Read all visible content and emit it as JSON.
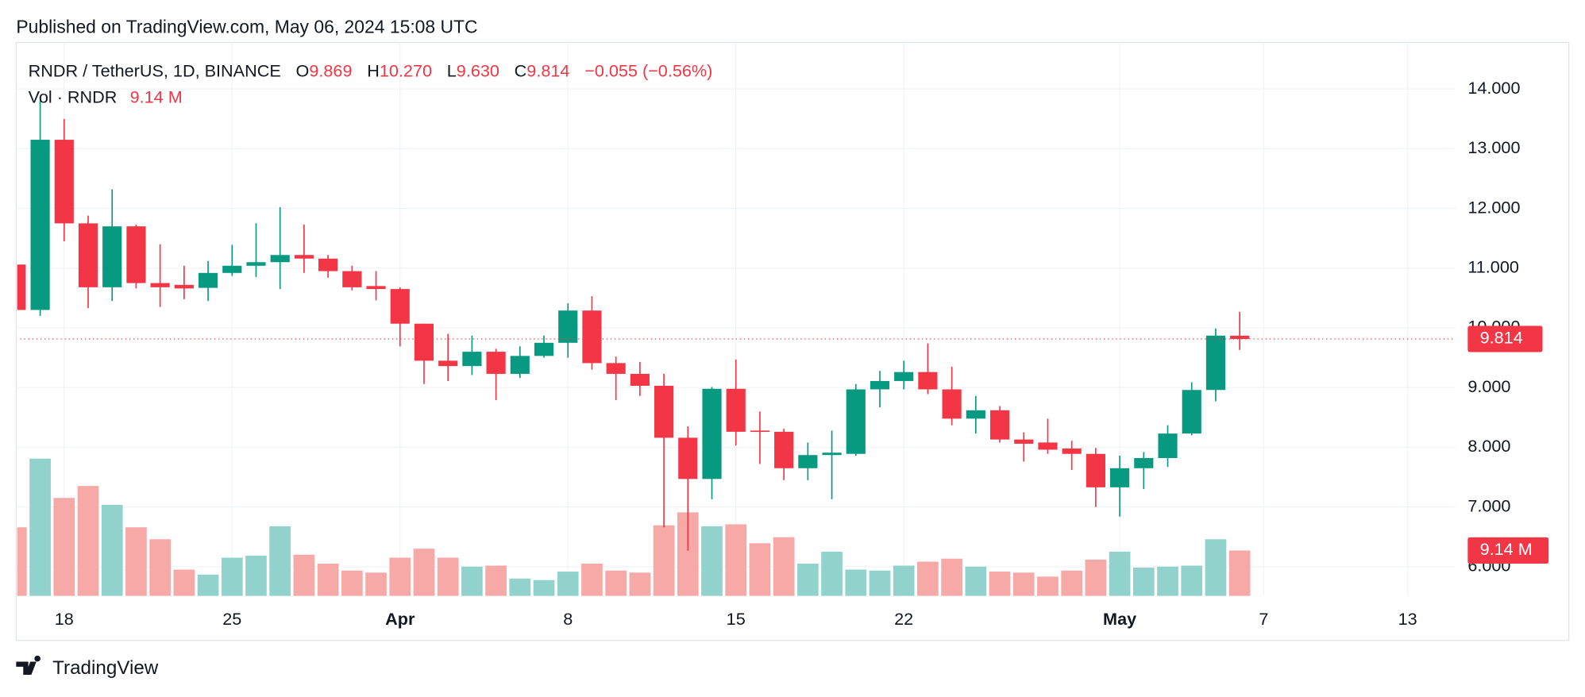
{
  "header": {
    "published": "Published on TradingView.com, May 06, 2024 15:08 UTC"
  },
  "footer": {
    "brand": "TradingView"
  },
  "chart_data": {
    "type": "candlestick",
    "symbol": "RNDR / TetherUS, 1D, BINANCE",
    "ohlc_letters": [
      "O",
      "H",
      "L",
      "C"
    ],
    "ohlc_header": [
      "9.869",
      "10.270",
      "9.630",
      "9.814"
    ],
    "change": "−0.055 (−0.56%)",
    "volume_title": "Vol · RNDR",
    "volume_label": "9.14 M",
    "up_color": "#089981",
    "down_color": "#f23645",
    "up_volume_color": "#92d2cc",
    "down_volume_color": "#f7a9a7",
    "grid": true,
    "x": [
      "Mar 16",
      "Mar 17",
      "Mar 18",
      "Mar 19",
      "Mar 20",
      "Mar 21",
      "Mar 22",
      "Mar 23",
      "Mar 24",
      "Mar 25",
      "Mar 26",
      "Mar 27",
      "Mar 28",
      "Mar 29",
      "Mar 30",
      "Mar 31",
      "Apr 1",
      "Apr 2",
      "Apr 3",
      "Apr 4",
      "Apr 5",
      "Apr 6",
      "Apr 7",
      "Apr 8",
      "Apr 9",
      "Apr 10",
      "Apr 11",
      "Apr 12",
      "Apr 13",
      "Apr 14",
      "Apr 15",
      "Apr 16",
      "Apr 17",
      "Apr 18",
      "Apr 19",
      "Apr 20",
      "Apr 21",
      "Apr 22",
      "Apr 23",
      "Apr 24",
      "Apr 25",
      "Apr 26",
      "Apr 27",
      "Apr 28",
      "Apr 29",
      "Apr 30",
      "May 1",
      "May 2",
      "May 3",
      "May 4",
      "May 5",
      "May 6"
    ],
    "open": [
      11.06,
      10.3,
      13.15,
      11.75,
      10.68,
      11.7,
      10.75,
      10.72,
      10.67,
      10.92,
      11.04,
      11.1,
      11.22,
      11.16,
      10.95,
      10.7,
      10.65,
      10.07,
      9.45,
      9.36,
      9.6,
      9.23,
      9.53,
      9.75,
      10.29,
      9.41,
      9.23,
      9.03,
      8.16,
      7.47,
      8.98,
      8.28,
      8.26,
      7.65,
      7.87,
      7.89,
      8.97,
      9.11,
      9.26,
      8.97,
      8.48,
      8.62,
      8.13,
      8.08,
      7.98,
      7.89,
      7.33,
      7.65,
      7.82,
      8.23,
      8.96,
      9.869
    ],
    "high": [
      11.2,
      13.8,
      13.5,
      11.88,
      12.32,
      11.73,
      11.4,
      11.04,
      11.12,
      11.39,
      11.75,
      12.02,
      11.73,
      11.22,
      11.04,
      10.95,
      10.68,
      10.07,
      9.9,
      9.87,
      9.65,
      9.69,
      9.87,
      10.41,
      10.53,
      9.52,
      9.43,
      9.23,
      8.35,
      9.01,
      9.47,
      8.6,
      8.31,
      8.08,
      8.28,
      9.06,
      9.28,
      9.45,
      9.74,
      9.35,
      8.86,
      8.69,
      8.25,
      8.48,
      8.11,
      7.99,
      7.86,
      7.92,
      8.37,
      9.09,
      9.99,
      10.27
    ],
    "low": [
      10.2,
      10.2,
      11.45,
      10.33,
      10.45,
      10.66,
      10.35,
      10.48,
      10.45,
      10.87,
      10.85,
      10.65,
      10.92,
      10.84,
      10.63,
      10.46,
      9.69,
      9.06,
      9.11,
      9.21,
      8.79,
      9.16,
      9.5,
      9.5,
      9.3,
      8.79,
      8.86,
      6.66,
      6.27,
      7.13,
      8.03,
      7.72,
      7.45,
      7.45,
      7.13,
      7.86,
      8.67,
      8.97,
      8.89,
      8.37,
      8.23,
      8.08,
      7.76,
      7.89,
      7.62,
      7.0,
      6.84,
      7.3,
      7.67,
      8.2,
      8.77,
      9.63
    ],
    "close": [
      10.3,
      13.15,
      11.75,
      10.68,
      11.7,
      10.75,
      10.68,
      10.66,
      10.92,
      11.04,
      11.1,
      11.22,
      11.16,
      10.95,
      10.68,
      10.65,
      10.07,
      9.45,
      9.36,
      9.6,
      9.23,
      9.53,
      9.75,
      10.29,
      9.41,
      9.23,
      9.03,
      8.16,
      7.47,
      8.98,
      8.26,
      8.26,
      7.65,
      7.87,
      7.91,
      8.97,
      9.11,
      9.26,
      8.97,
      8.48,
      8.62,
      8.13,
      8.06,
      7.96,
      7.89,
      7.33,
      7.65,
      7.82,
      8.23,
      8.96,
      9.87,
      9.814
    ],
    "volume": [
      13.8,
      27.6,
      19.7,
      22.1,
      18.3,
      13.8,
      11.4,
      5.3,
      4.3,
      7.7,
      8.1,
      14.0,
      8.3,
      6.5,
      5.1,
      4.7,
      7.7,
      9.5,
      7.7,
      5.9,
      6.1,
      3.5,
      3.2,
      4.9,
      6.5,
      5.1,
      4.7,
      14.2,
      16.8,
      14.0,
      14.4,
      10.6,
      11.8,
      6.5,
      8.9,
      5.3,
      5.1,
      6.1,
      6.9,
      7.5,
      5.9,
      4.9,
      4.7,
      3.9,
      5.1,
      7.3,
      8.9,
      5.7,
      5.9,
      6.1,
      11.4,
      9.14
    ],
    "xlim": [
      "Mar 16",
      "May 15"
    ],
    "xticks": [
      {
        "value": "Mar 18",
        "label": "18"
      },
      {
        "value": "Mar 25",
        "label": "25"
      },
      {
        "value": "Apr 1",
        "label": "Apr"
      },
      {
        "value": "Apr 8",
        "label": "8"
      },
      {
        "value": "Apr 15",
        "label": "15"
      },
      {
        "value": "Apr 22",
        "label": "22"
      },
      {
        "value": "May 1",
        "label": "May"
      },
      {
        "value": "May 7",
        "label": "7"
      },
      {
        "value": "May 13",
        "label": "13"
      }
    ],
    "ylim": [
      5.51,
      14.78
    ],
    "yticks": [
      {
        "value": 6,
        "label": "6.000"
      },
      {
        "value": 7,
        "label": "7.000"
      },
      {
        "value": 8,
        "label": "8.000"
      },
      {
        "value": 9,
        "label": "9.000"
      },
      {
        "value": 10,
        "label": "10.000"
      },
      {
        "value": 11,
        "label": "11.000"
      },
      {
        "value": 12,
        "label": "12.000"
      },
      {
        "value": 13,
        "label": "13.000"
      },
      {
        "value": 14,
        "label": "14.000"
      }
    ]
  }
}
